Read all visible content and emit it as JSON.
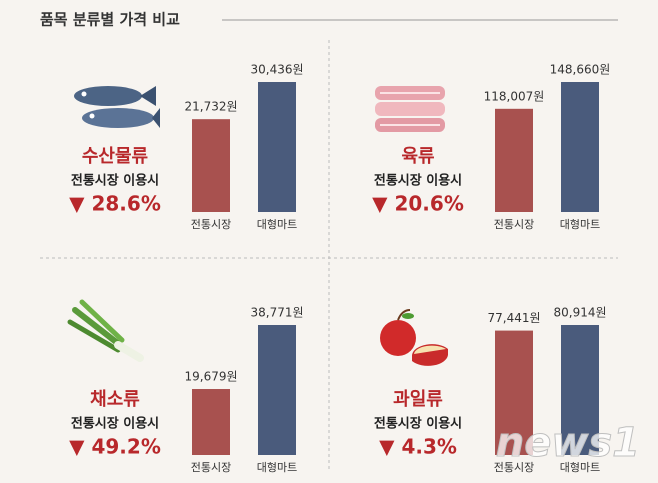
{
  "title": "품목 분류별 가격 비교",
  "watermark": "news1",
  "chart_data": [
    {
      "type": "bar",
      "title": "수산물류",
      "subtitle": "전통시장 이용시",
      "annotation": "▼ 28.6%",
      "categories": [
        "전통시장",
        "대형마트"
      ],
      "values": [
        21732,
        30436
      ],
      "value_labels": [
        "21,732원",
        "30,436원"
      ],
      "colors": [
        "#a8514f",
        "#4a5b7c"
      ]
    },
    {
      "type": "bar",
      "title": "육류",
      "subtitle": "전통시장 이용시",
      "annotation": "▼ 20.6%",
      "categories": [
        "전통시장",
        "대형마트"
      ],
      "values": [
        118007,
        148660
      ],
      "value_labels": [
        "118,007원",
        "148,660원"
      ],
      "colors": [
        "#a8514f",
        "#4a5b7c"
      ]
    },
    {
      "type": "bar",
      "title": "채소류",
      "subtitle": "전통시장 이용시",
      "annotation": "▼ 49.2%",
      "categories": [
        "전통시장",
        "대형마트"
      ],
      "values": [
        19679,
        38771
      ],
      "value_labels": [
        "19,679원",
        "38,771원"
      ],
      "colors": [
        "#a8514f",
        "#4a5b7c"
      ]
    },
    {
      "type": "bar",
      "title": "과일류",
      "subtitle": "전통시장 이용시",
      "annotation": "▼ 4.3%",
      "categories": [
        "전통시장",
        "대형마트"
      ],
      "values": [
        77441,
        80914
      ],
      "value_labels": [
        "77,441원",
        "80,914원"
      ],
      "colors": [
        "#a8514f",
        "#4a5b7c"
      ]
    }
  ]
}
